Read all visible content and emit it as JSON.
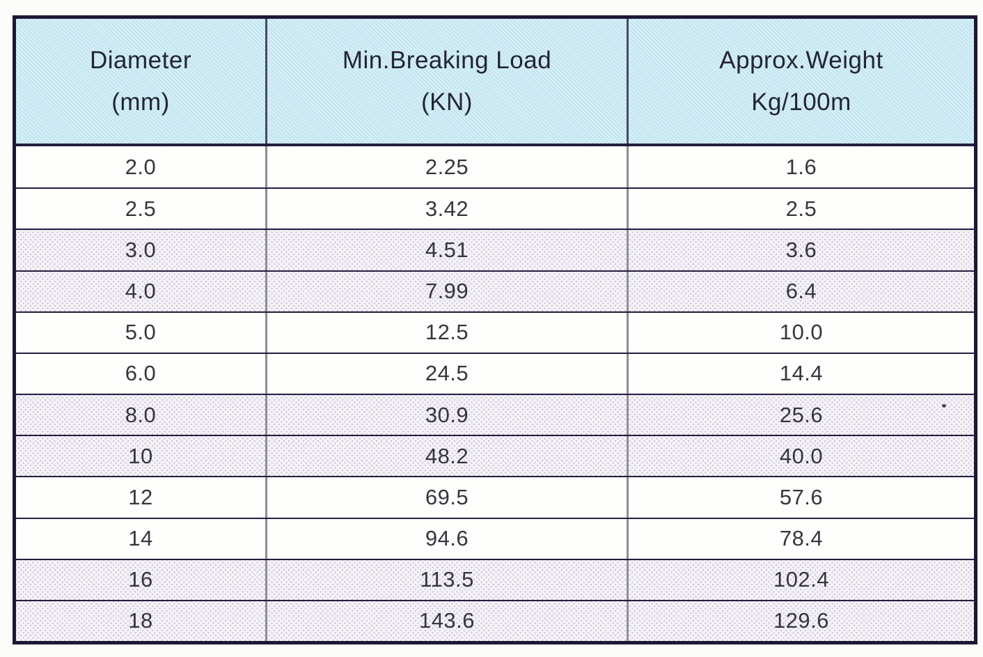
{
  "table": {
    "headers": [
      {
        "line1": "Diameter",
        "line2": "(mm)"
      },
      {
        "line1": "Min.Breaking Load",
        "line2": "(KN)"
      },
      {
        "line1": "Approx.Weight",
        "line2": "Kg/100m"
      }
    ],
    "rows": [
      {
        "diameter": "2.0",
        "breaking_load": "2.25",
        "weight": "1.6"
      },
      {
        "diameter": "2.5",
        "breaking_load": "3.42",
        "weight": "2.5"
      },
      {
        "diameter": "3.0",
        "breaking_load": "4.51",
        "weight": "3.6"
      },
      {
        "diameter": "4.0",
        "breaking_load": "7.99",
        "weight": "6.4"
      },
      {
        "diameter": "5.0",
        "breaking_load": "12.5",
        "weight": "10.0"
      },
      {
        "diameter": "6.0",
        "breaking_load": "24.5",
        "weight": "14.4"
      },
      {
        "diameter": "8.0",
        "breaking_load": "30.9",
        "weight": "25.6"
      },
      {
        "diameter": "10",
        "breaking_load": "48.2",
        "weight": "40.0"
      },
      {
        "diameter": "12",
        "breaking_load": "69.5",
        "weight": "57.6"
      },
      {
        "diameter": "14",
        "breaking_load": "94.6",
        "weight": "78.4"
      },
      {
        "diameter": "16",
        "breaking_load": "113.5",
        "weight": "102.4"
      },
      {
        "diameter": "18",
        "breaking_load": "143.6",
        "weight": "129.6"
      }
    ]
  },
  "colors": {
    "header_bg": "#c9e9f4",
    "shaded_row": "#e7e4ee",
    "outer_border": "#1d1734",
    "row_separator": "#241d3e",
    "column_divider_body": "#8d8d95",
    "column_divider_header": "#44486a",
    "text": "#35353c"
  }
}
